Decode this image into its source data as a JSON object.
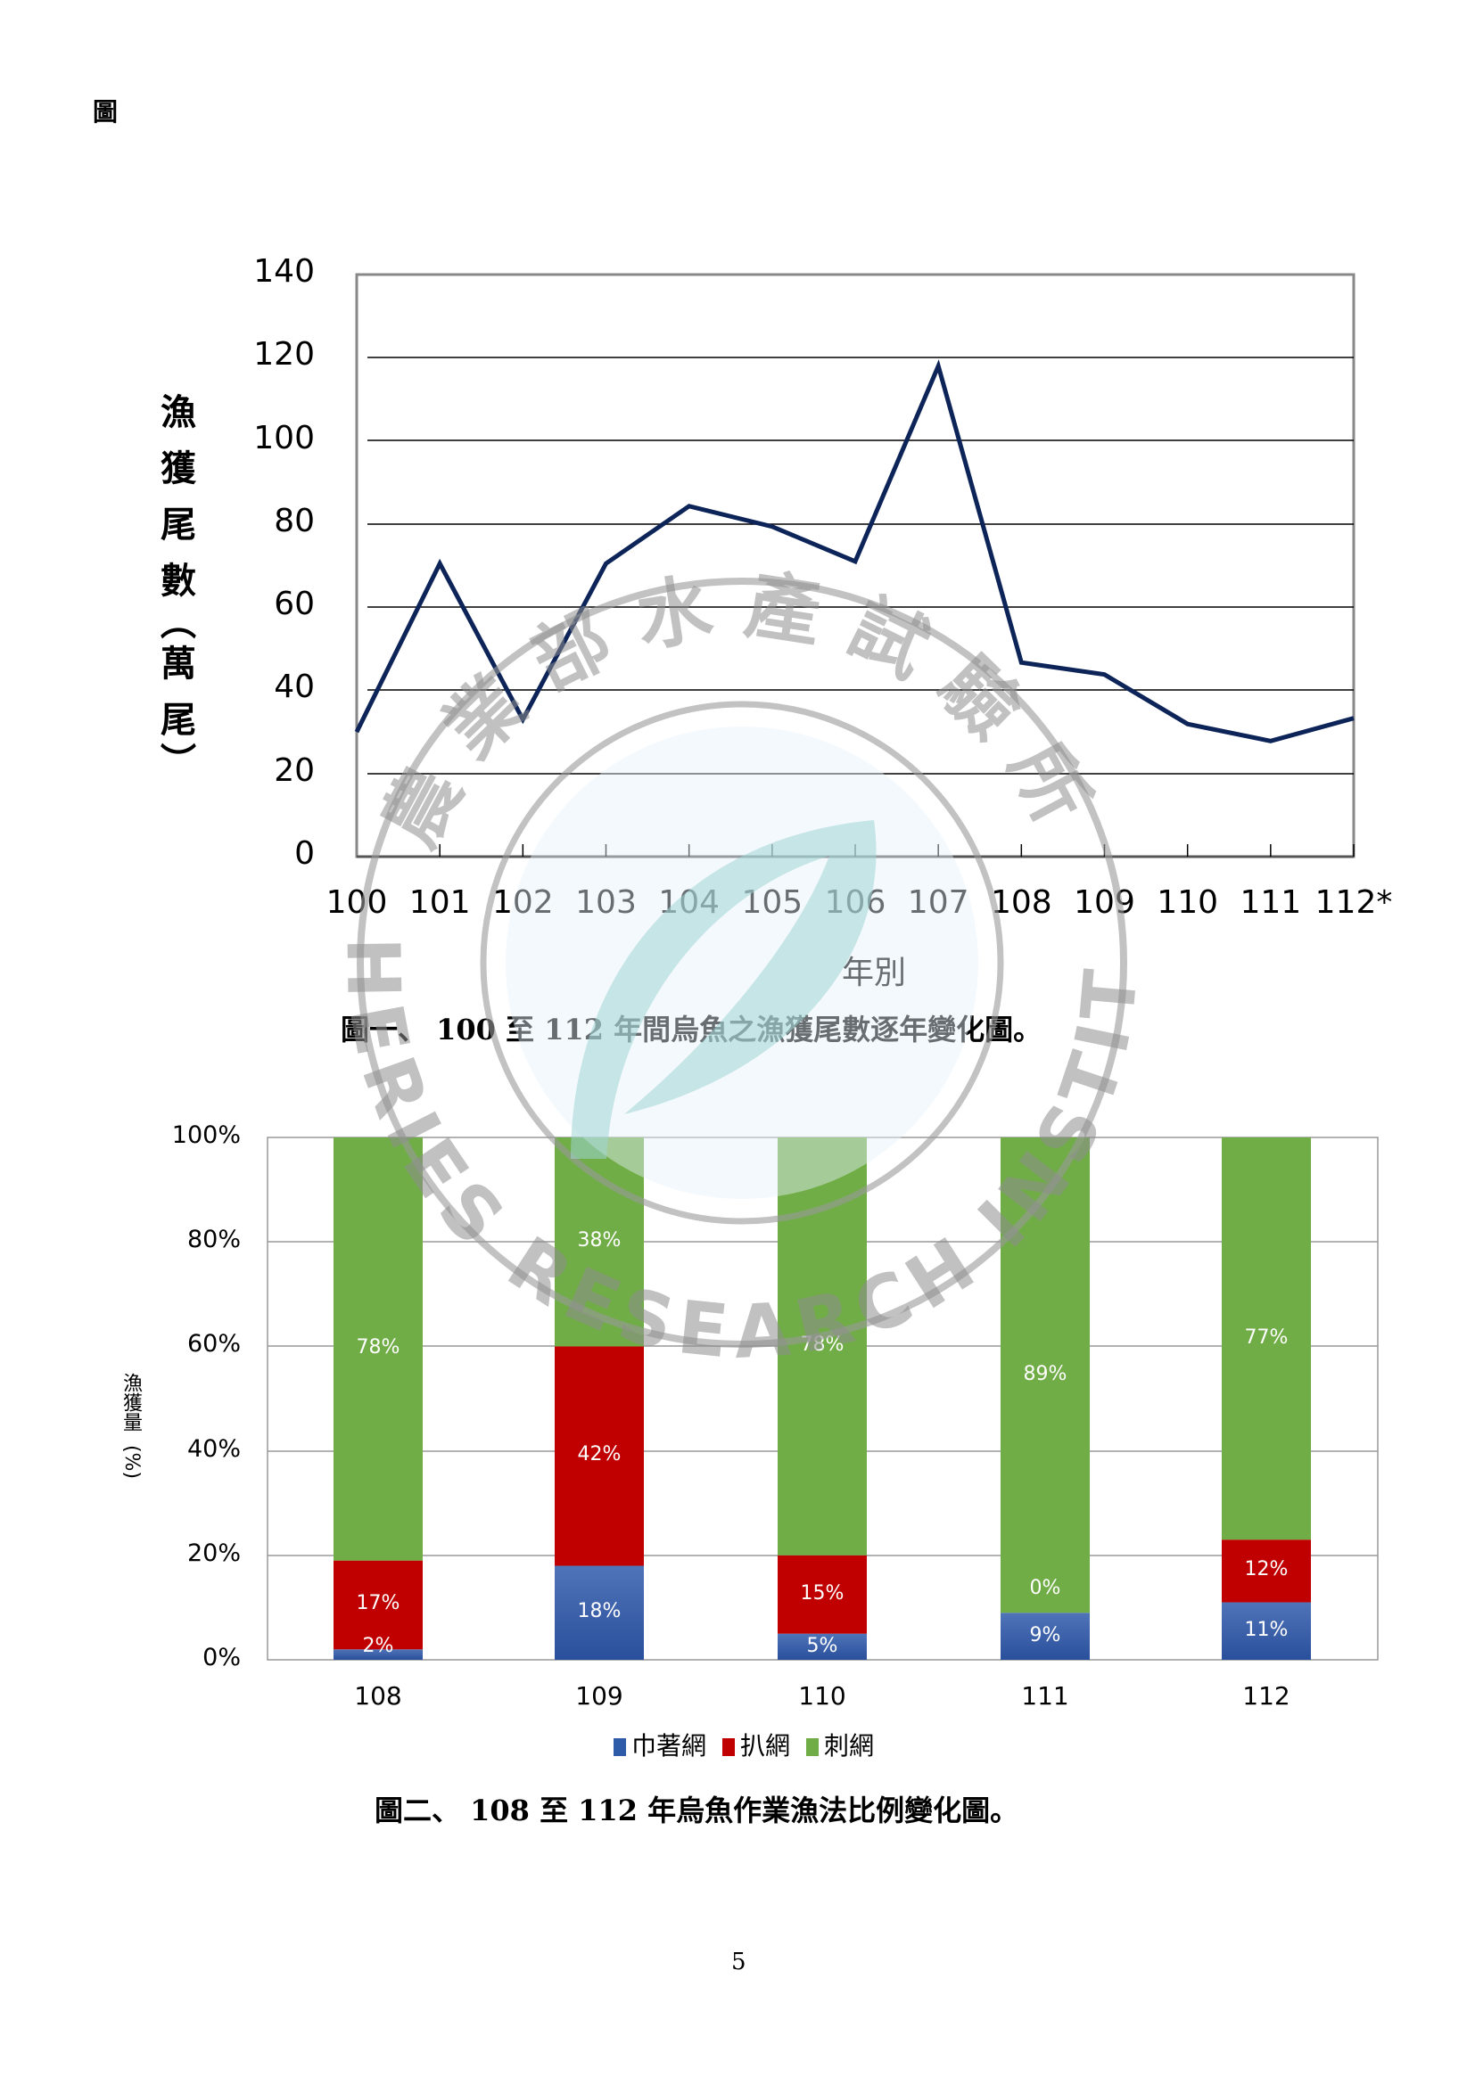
{
  "page": {
    "heading": "圖",
    "page_number": "5"
  },
  "figure1": {
    "y_axis_label_chars": [
      "漁",
      "獲",
      "尾",
      "數",
      "︵",
      "萬",
      "尾",
      "︶"
    ],
    "y_ticks": [
      "140",
      "120",
      "100",
      "80",
      "60",
      "40",
      "20",
      "0"
    ],
    "x_ticks": [
      "100",
      "101",
      "102",
      "103",
      "104",
      "105",
      "106",
      "107",
      "108",
      "109",
      "110",
      "111",
      "112*"
    ],
    "x_axis_title": "年別",
    "caption": "圖一、 100 至 112 年間烏魚之漁獲尾數逐年變化圖。",
    "line_color": "#0d2459"
  },
  "figure2": {
    "y_axis_label": "漁獲量",
    "y_axis_unit": "(%)",
    "y_ticks": [
      "100%",
      "80%",
      "60%",
      "40%",
      "20%",
      "0%"
    ],
    "x_ticks": [
      "108",
      "109",
      "110",
      "111",
      "112"
    ],
    "legend": [
      {
        "label": "巾著網",
        "color": "#2e5ca8"
      },
      {
        "label": "扒網",
        "color": "#c00000"
      },
      {
        "label": "刺網",
        "color": "#70ad47"
      }
    ],
    "bar_labels": [
      {
        "blue": "2%",
        "red": "17%",
        "green": "78%"
      },
      {
        "blue": "18%",
        "red": "42%",
        "green": "38%"
      },
      {
        "blue": "5%",
        "red": "15%",
        "green": "78%"
      },
      {
        "blue": "9%",
        "red": "0%",
        "green": "89%"
      },
      {
        "blue": "11%",
        "red": "12%",
        "green": "77%"
      }
    ],
    "caption": "圖二、 108 至 112 年烏魚作業漁法比例變化圖。"
  },
  "watermark": {
    "top_text": "農業部水產試驗所",
    "bottom_text": "FISHERIES RESEARCH INSTITUTE"
  },
  "chart_data": [
    {
      "type": "line",
      "title": "圖一、 100 至 112 年間烏魚之漁獲尾數逐年變化圖。",
      "xlabel": "年別",
      "ylabel": "漁獲尾數(萬尾)",
      "categories": [
        "100",
        "101",
        "102",
        "103",
        "104",
        "105",
        "106",
        "107",
        "108",
        "109",
        "110",
        "111",
        "112*"
      ],
      "values": [
        30,
        70.5,
        33,
        70.5,
        84.3,
        79.4,
        71,
        118,
        46.7,
        43.8,
        31.9,
        27.8,
        33.3
      ],
      "ylim": [
        0,
        140
      ],
      "y_ticks": [
        0,
        20,
        40,
        60,
        80,
        100,
        120,
        140
      ],
      "grid": true,
      "legend": null
    },
    {
      "type": "bar",
      "stacked": true,
      "percent": true,
      "title": "圖二、 108 至 112 年烏魚作業漁法比例變化圖。",
      "xlabel": "",
      "ylabel": "漁獲量(%)",
      "categories": [
        "108",
        "109",
        "110",
        "111",
        "112"
      ],
      "series": [
        {
          "name": "巾著網",
          "values": [
            2,
            18,
            5,
            9,
            11
          ],
          "color": "#2e5ca8"
        },
        {
          "name": "扒網",
          "values": [
            17,
            42,
            15,
            0,
            12
          ],
          "color": "#c00000"
        },
        {
          "name": "刺網",
          "values": [
            78,
            38,
            78,
            89,
            77
          ],
          "color": "#70ad47"
        }
      ],
      "ylim": [
        0,
        100
      ],
      "y_ticks": [
        "0%",
        "20%",
        "40%",
        "60%",
        "80%",
        "100%"
      ],
      "grid": true,
      "legend_position": "bottom"
    }
  ]
}
